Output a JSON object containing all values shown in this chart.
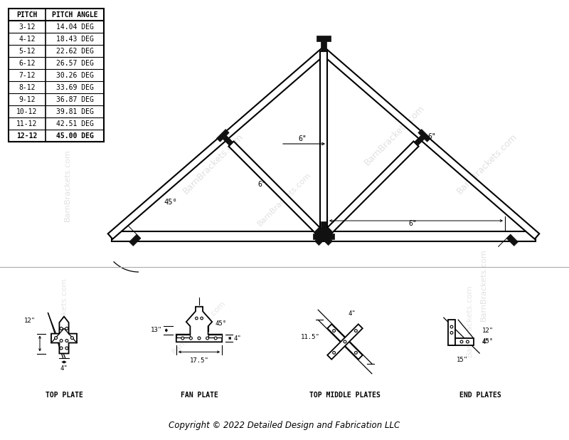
{
  "background_color": "#ffffff",
  "line_color": "#000000",
  "bracket_color": "#111111",
  "watermark_color": "#c8c8c8",
  "table_pitches": [
    "3-12",
    "4-12",
    "5-12",
    "6-12",
    "7-12",
    "8-12",
    "9-12",
    "10-12",
    "11-12",
    "12-12"
  ],
  "table_angles": [
    "14.04 DEG",
    "18.43 DEG",
    "22.62 DEG",
    "26.57 DEG",
    "30.26 DEG",
    "33.69 DEG",
    "36.87 DEG",
    "39.81 DEG",
    "42.51 DEG",
    "45.00 DEG"
  ],
  "table_header": [
    "PITCH",
    "PITCH ANGLE"
  ],
  "copyright_text": "Copyright © 2022 Detailed Design and Fabrication LLC",
  "angle_label": "45°",
  "dim_6_label": "6\"",
  "top_plate_label": "TOP PLATE",
  "fan_plate_label": "FAN PLATE",
  "top_middle_label": "TOP MIDDLE PLATES",
  "end_plates_label": "END PLATES"
}
